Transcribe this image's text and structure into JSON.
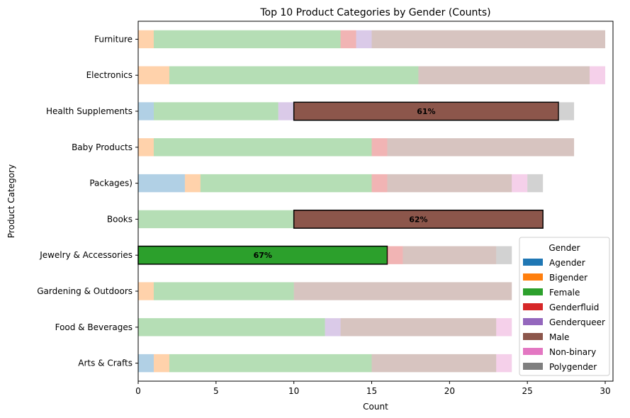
{
  "chart_data": {
    "type": "bar",
    "orientation": "horizontal",
    "stacked": true,
    "title": "Top 10 Product Categories by Gender (Counts)",
    "xlabel": "Count",
    "ylabel": "Product Category",
    "xlim": [
      0,
      30.5
    ],
    "xticks": [
      0,
      5,
      10,
      15,
      20,
      25,
      30
    ],
    "categories": [
      "Furniture",
      "Electronics",
      "Health Supplements",
      "Baby Products",
      "Packages)",
      "Books",
      "Jewelry & Accessories",
      "Gardening & Outdoors",
      "Food & Beverages",
      "Arts & Crafts"
    ],
    "series": [
      {
        "name": "Agender",
        "color": "#1f77b4",
        "values": [
          0,
          0,
          1,
          0,
          3,
          0,
          0,
          0,
          0,
          1
        ]
      },
      {
        "name": "Bigender",
        "color": "#ff7f0e",
        "values": [
          1,
          2,
          0,
          1,
          1,
          0,
          0,
          1,
          0,
          1
        ]
      },
      {
        "name": "Female",
        "color": "#2ca02c",
        "values": [
          12,
          16,
          8,
          14,
          11,
          10,
          16,
          9,
          12,
          13
        ]
      },
      {
        "name": "Genderfluid",
        "color": "#d62728",
        "values": [
          1,
          0,
          0,
          1,
          1,
          0,
          1,
          0,
          0,
          0
        ]
      },
      {
        "name": "Genderqueer",
        "color": "#9467bd",
        "values": [
          1,
          0,
          1,
          0,
          0,
          0,
          0,
          0,
          1,
          0
        ]
      },
      {
        "name": "Male",
        "color": "#8c564b",
        "values": [
          15,
          11,
          17,
          12,
          8,
          16,
          6,
          14,
          10,
          8
        ]
      },
      {
        "name": "Non-binary",
        "color": "#e377c2",
        "values": [
          0,
          1,
          0,
          0,
          1,
          0,
          0,
          0,
          1,
          1
        ]
      },
      {
        "name": "Polygender",
        "color": "#7f7f7f",
        "values": [
          0,
          0,
          1,
          0,
          1,
          0,
          1,
          0,
          0,
          0
        ]
      }
    ],
    "highlights": [
      {
        "category": "Health Supplements",
        "series": "Male",
        "label": "61%"
      },
      {
        "category": "Books",
        "series": "Male",
        "label": "62%"
      },
      {
        "category": "Jewelry & Accessories",
        "series": "Female",
        "label": "67%"
      }
    ],
    "legend": {
      "title": "Gender",
      "placement": "lower-right"
    }
  }
}
